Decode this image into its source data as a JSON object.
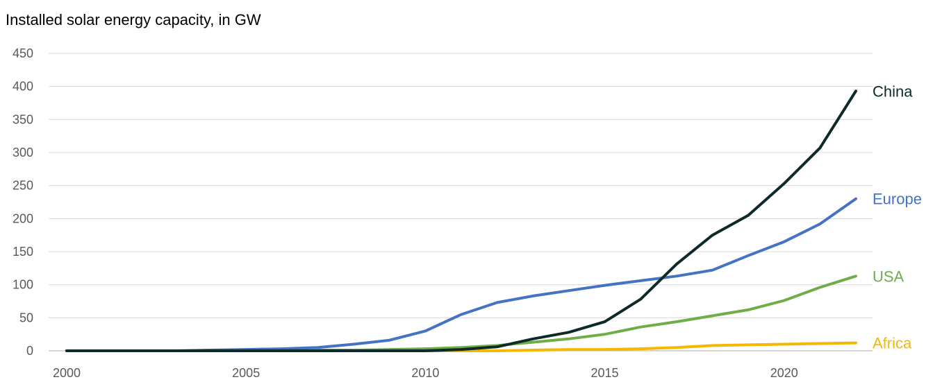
{
  "chart_data": {
    "type": "line",
    "title": "Installed solar energy capacity, in GW",
    "xlabel": "",
    "ylabel": "",
    "xlim": [
      2000,
      2022
    ],
    "ylim": [
      0,
      450
    ],
    "x_ticks": [
      2000,
      2005,
      2010,
      2015,
      2020
    ],
    "y_ticks": [
      0,
      50,
      100,
      150,
      200,
      250,
      300,
      350,
      400,
      450
    ],
    "grid": "horizontal",
    "legend": "direct labels at line ends (right)",
    "x": [
      2000,
      2001,
      2002,
      2003,
      2004,
      2005,
      2006,
      2007,
      2008,
      2009,
      2010,
      2011,
      2012,
      2013,
      2014,
      2015,
      2016,
      2017,
      2018,
      2019,
      2020,
      2021,
      2022
    ],
    "series": [
      {
        "name": "China",
        "color": "#0d2a2a",
        "values": [
          0,
          0,
          0,
          0,
          0,
          0,
          0,
          0,
          0,
          0,
          0,
          2,
          6,
          18,
          28,
          44,
          78,
          131,
          175,
          205,
          253,
          307,
          393
        ]
      },
      {
        "name": "Europe",
        "color": "#4472c4",
        "values": [
          0,
          0,
          0,
          0,
          1,
          2,
          3,
          5,
          10,
          16,
          30,
          55,
          73,
          83,
          91,
          99,
          106,
          113,
          122,
          144,
          165,
          192,
          230
        ]
      },
      {
        "name": "USA",
        "color": "#70ad47",
        "values": [
          0,
          0,
          0,
          0,
          0,
          0,
          0,
          1,
          1,
          2,
          3,
          5,
          8,
          13,
          18,
          25,
          36,
          44,
          53,
          62,
          76,
          96,
          113
        ]
      },
      {
        "name": "Africa",
        "color": "#f5b800",
        "values": [
          0,
          0,
          0,
          0,
          0,
          0,
          0,
          0,
          0,
          0,
          0,
          0,
          0,
          1,
          2,
          2,
          3,
          5,
          8,
          9,
          10,
          11,
          12
        ]
      }
    ]
  }
}
